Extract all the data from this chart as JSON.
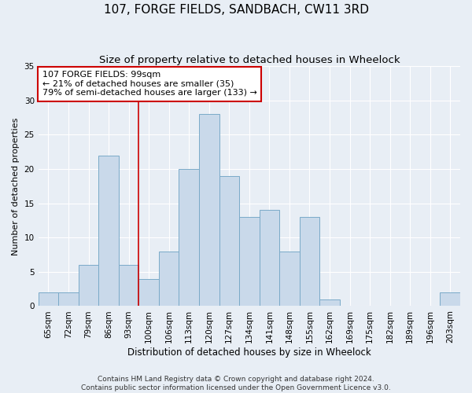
{
  "title": "107, FORGE FIELDS, SANDBACH, CW11 3RD",
  "subtitle": "Size of property relative to detached houses in Wheelock",
  "xlabel": "Distribution of detached houses by size in Wheelock",
  "ylabel": "Number of detached properties",
  "bin_labels": [
    "65sqm",
    "72sqm",
    "79sqm",
    "86sqm",
    "93sqm",
    "100sqm",
    "106sqm",
    "113sqm",
    "120sqm",
    "127sqm",
    "134sqm",
    "141sqm",
    "148sqm",
    "155sqm",
    "162sqm",
    "169sqm",
    "175sqm",
    "182sqm",
    "189sqm",
    "196sqm",
    "203sqm"
  ],
  "bar_values": [
    2,
    2,
    6,
    22,
    6,
    4,
    8,
    20,
    28,
    19,
    13,
    14,
    8,
    13,
    1,
    0,
    0,
    0,
    0,
    0,
    2
  ],
  "bar_color": "#c9d9ea",
  "bar_edge_color": "#7aaac8",
  "vline_index": 4.5,
  "vline_color": "#cc0000",
  "annotation_text": "107 FORGE FIELDS: 99sqm\n← 21% of detached houses are smaller (35)\n79% of semi-detached houses are larger (133) →",
  "annotation_box_facecolor": "#ffffff",
  "annotation_box_edgecolor": "#cc0000",
  "ylim": [
    0,
    35
  ],
  "yticks": [
    0,
    5,
    10,
    15,
    20,
    25,
    30,
    35
  ],
  "footnote1": "Contains HM Land Registry data © Crown copyright and database right 2024.",
  "footnote2": "Contains public sector information licensed under the Open Government Licence v3.0.",
  "bg_color": "#e8eef5",
  "plot_bg_color": "#e8eef5",
  "title_fontsize": 11,
  "subtitle_fontsize": 9.5,
  "xlabel_fontsize": 8.5,
  "ylabel_fontsize": 8,
  "tick_fontsize": 7.5,
  "annotation_fontsize": 8,
  "footnote_fontsize": 6.5
}
